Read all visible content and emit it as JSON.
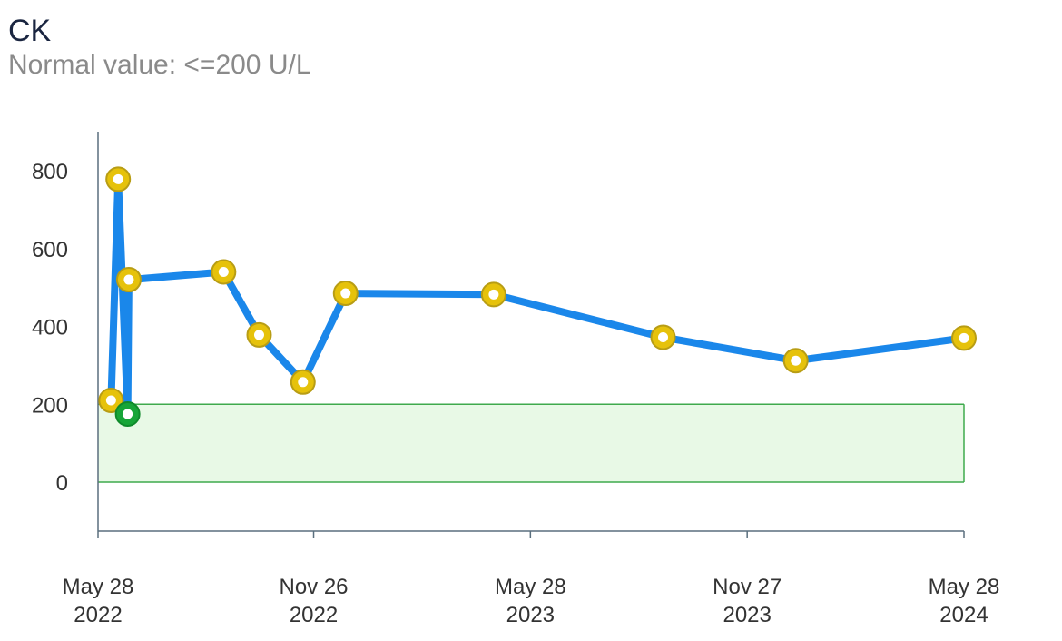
{
  "title": "CK",
  "subtitle": "Normal value: <=200 U/L",
  "chart_data": {
    "type": "line",
    "title": "CK",
    "subtitle": "Normal value: <=200 U/L",
    "xlabel": "",
    "ylabel": "",
    "ylim": [
      -125,
      900
    ],
    "xlim": [
      "2022-05-28",
      "2024-05-28"
    ],
    "y_ticks": [
      800,
      600,
      400,
      200,
      0
    ],
    "x_ticks": [
      {
        "date": "2022-05-28",
        "line1": "May 28",
        "line2": "2022"
      },
      {
        "date": "2022-11-26",
        "line1": "Nov 26",
        "line2": "2022"
      },
      {
        "date": "2023-05-28",
        "line1": "May 28",
        "line2": "2023"
      },
      {
        "date": "2023-11-27",
        "line1": "Nov 27",
        "line2": "2023"
      },
      {
        "date": "2024-05-28",
        "line1": "May 28",
        "line2": "2024"
      }
    ],
    "normal_range": [
      0,
      200
    ],
    "grid": false,
    "series": [
      {
        "points": [
          {
            "x": "2022-06-08",
            "y": 210,
            "status": "abnormal"
          },
          {
            "x": "2022-06-14",
            "y": 778,
            "status": "abnormal"
          },
          {
            "x": "2022-06-22",
            "y": 175,
            "status": "normal"
          },
          {
            "x": "2022-06-23",
            "y": 520,
            "status": "abnormal"
          },
          {
            "x": "2022-09-11",
            "y": 540,
            "status": "abnormal"
          },
          {
            "x": "2022-10-11",
            "y": 378,
            "status": "abnormal"
          },
          {
            "x": "2022-11-17",
            "y": 257,
            "status": "abnormal"
          },
          {
            "x": "2022-12-23",
            "y": 485,
            "status": "abnormal"
          },
          {
            "x": "2023-04-27",
            "y": 482,
            "status": "abnormal"
          },
          {
            "x": "2023-09-17",
            "y": 372,
            "status": "abnormal"
          },
          {
            "x": "2024-01-07",
            "y": 312,
            "status": "abnormal"
          },
          {
            "x": "2024-05-28",
            "y": 370,
            "status": "abnormal"
          }
        ]
      }
    ]
  },
  "colors": {
    "line": "#1a87ea",
    "abnormal_fill": "#e6c20b",
    "abnormal_stroke": "#b89d14",
    "normal_fill": "#17a538",
    "normal_stroke": "#0f8a2b",
    "range_fill": "#e8f9e6",
    "range_stroke": "#3faa4d",
    "axis": "#5a6f7e"
  }
}
